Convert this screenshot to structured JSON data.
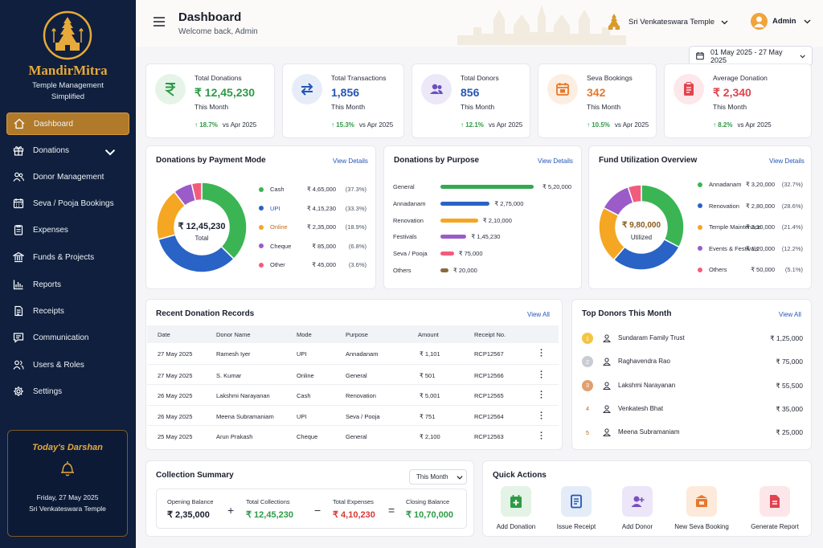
{
  "brand": {
    "name": "MandirMitra",
    "tagline_line1": "Temple Management",
    "tagline_line2": "Simplified"
  },
  "nav": [
    {
      "label": "Dashboard",
      "icon": "home-icon",
      "active": true
    },
    {
      "label": "Donations",
      "icon": "gift-icon",
      "expandable": true
    },
    {
      "label": "Donor Management",
      "icon": "users-icon"
    },
    {
      "label": "Seva / Pooja Bookings",
      "icon": "calendar-icon"
    },
    {
      "label": "Expenses",
      "icon": "clipboard-icon"
    },
    {
      "label": "Funds & Projects",
      "icon": "bank-icon"
    },
    {
      "label": "Reports",
      "icon": "bar-chart-icon"
    },
    {
      "label": "Receipts",
      "icon": "receipt-icon"
    },
    {
      "label": "Communication",
      "icon": "message-icon"
    },
    {
      "label": "Users & Roles",
      "icon": "user-group-icon"
    },
    {
      "label": "Settings",
      "icon": "gear-icon"
    }
  ],
  "darshan": {
    "title": "Today's Darshan",
    "date": "Friday, 27 May 2025",
    "temple": "Sri Venkateswara Temple"
  },
  "header": {
    "title": "Dashboard",
    "welcome": "Welcome back, Admin",
    "temple": "Sri Venkateswara Temple",
    "user": "Admin",
    "date_range": "01 May 2025 - 27 May 2025"
  },
  "stats": [
    {
      "label": "Total Donations",
      "value": "₹ 12,45,230",
      "sub": "This Month",
      "trend": "↑ 18.7%",
      "compare": "vs Apr 2025",
      "color": "#2e9a46",
      "bg": "#e6f4e8",
      "icon": "rupee-icon"
    },
    {
      "label": "Total Transactions",
      "value": "1,856",
      "sub": "This Month",
      "trend": "↑ 15.3%",
      "compare": "vs Apr 2025",
      "color": "#2456b8",
      "bg": "#e7edf8",
      "icon": "transfer-icon"
    },
    {
      "label": "Total Donors",
      "value": "856",
      "sub": "This Month",
      "trend": "↑ 12.1%",
      "compare": "vs Apr 2025",
      "color": "#2456b8",
      "bg": "#ece8f8",
      "icon": "donors-icon"
    },
    {
      "label": "Seva Bookings",
      "value": "342",
      "sub": "This Month",
      "trend": "↑ 10.5%",
      "compare": "vs Apr 2025",
      "color": "#e8782c",
      "bg": "#fdeee2",
      "icon": "seva-calendar-icon"
    },
    {
      "label": "Average Donation",
      "value": "₹ 2,340",
      "sub": "This Month",
      "trend": "↑ 8.2%",
      "compare": "vs Apr 2025",
      "color": "#e0444f",
      "bg": "#fde7ea",
      "icon": "report-icon"
    }
  ],
  "payment_mode": {
    "title": "Donations by Payment Mode",
    "view": "View Details",
    "center_value": "₹ 12,45,230",
    "center_label": "Total"
  },
  "purpose": {
    "title": "Donations by Purpose",
    "view": "View Details"
  },
  "fund": {
    "title": "Fund Utilization Overview",
    "view": "View Details",
    "center_value": "₹ 9,80,000",
    "center_label": "Utilized"
  },
  "chart_data": [
    {
      "type": "pie",
      "title": "Donations by Payment Mode",
      "series": [
        {
          "name": "Cash",
          "value": 465000,
          "amount": "₹ 4,65,000",
          "pct": "(37.3%)",
          "color": "#3bb554"
        },
        {
          "name": "UPI",
          "value": 415230,
          "amount": "₹ 4,15,230",
          "pct": "(33.3%)",
          "color": "#2a63c6"
        },
        {
          "name": "Online",
          "value": 235000,
          "amount": "₹ 2,35,000",
          "pct": "(18.9%)",
          "color": "#f5a623"
        },
        {
          "name": "Cheque",
          "value": 85000,
          "amount": "₹ 85,000",
          "pct": "(6.8%)",
          "color": "#9b5bc9"
        },
        {
          "name": "Other",
          "value": 45000,
          "amount": "₹ 45,000",
          "pct": "(3.6%)",
          "color": "#f25c7c"
        }
      ]
    },
    {
      "type": "bar",
      "title": "Donations by Purpose",
      "categories": [
        "General",
        "Annadanam",
        "Renovation",
        "Festivals",
        "Seva / Pooja",
        "Others"
      ],
      "values": [
        520000,
        275000,
        210000,
        145230,
        75000,
        20000
      ],
      "labels": [
        "₹ 5,20,000",
        "₹ 2,75,000",
        "₹ 2,10,000",
        "₹ 1,45,230",
        "₹ 75,000",
        "₹ 20,000"
      ],
      "colors": [
        "#34a853",
        "#2a63c6",
        "#f5a623",
        "#9b5bc9",
        "#f25c7c",
        "#8b6a3e"
      ]
    },
    {
      "type": "pie",
      "title": "Fund Utilization Overview",
      "series": [
        {
          "name": "Annadanam",
          "value": 320000,
          "amount": "₹ 3,20,000",
          "pct": "(32.7%)",
          "color": "#3bb554"
        },
        {
          "name": "Renovation",
          "value": 280000,
          "amount": "₹ 2,80,000",
          "pct": "(28.6%)",
          "color": "#2a63c6"
        },
        {
          "name": "Temple Maintenace",
          "value": 210000,
          "amount": "₹ 2,10,000",
          "pct": "(21.4%)",
          "color": "#f5a623"
        },
        {
          "name": "Events & Festivals",
          "value": 120000,
          "amount": "₹ 1,20,000",
          "pct": "(12.2%)",
          "color": "#9b5bc9"
        },
        {
          "name": "Others",
          "value": 50000,
          "amount": "₹ 50,000",
          "pct": "(5.1%)",
          "color": "#f25c7c"
        }
      ]
    }
  ],
  "records": {
    "title": "Recent Donation Records",
    "view": "View All",
    "columns": [
      "Date",
      "Donor Name",
      "Mode",
      "Purpose",
      "Amount",
      "Receipt No."
    ],
    "rows": [
      [
        "27 May 2025",
        "Ramesh Iyer",
        "UPI",
        "Annadanam",
        "₹ 1,101",
        "RCP12567"
      ],
      [
        "27 May 2025",
        "S. Kumar",
        "Online",
        "General",
        "₹ 501",
        "RCP12566"
      ],
      [
        "26 May 2025",
        "Lakshmi Narayanan",
        "Cash",
        "Renovation",
        "₹ 5,001",
        "RCP12565"
      ],
      [
        "26 May 2025",
        "Meena Subramaniam",
        "UPI",
        "Seva / Pooja",
        "₹ 751",
        "RCP12564"
      ],
      [
        "25 May 2025",
        "Arun Prakash",
        "Cheque",
        "General",
        "₹ 2,100",
        "RCP12563"
      ]
    ]
  },
  "top_donors": {
    "title": "Top Donors This Month",
    "view": "View All",
    "items": [
      {
        "rank": "1",
        "name": "Sundaram Family Trust",
        "amount": "₹ 1,25,000",
        "badge": "#f4c542"
      },
      {
        "rank": "2",
        "name": "Raghavendra Rao",
        "amount": "₹ 75,000",
        "badge": "#c9ccd3"
      },
      {
        "rank": "3",
        "name": "Lakshmi Narayanan",
        "amount": "₹ 55,500",
        "badge": "#e0a070"
      },
      {
        "rank": "4",
        "name": "Venkatesh Bhat",
        "amount": "₹ 35,000",
        "badge": ""
      },
      {
        "rank": "5",
        "name": "Meena Subramaniam",
        "amount": "₹ 25,000",
        "badge": ""
      }
    ]
  },
  "collection": {
    "title": "Collection Summary",
    "period": "This Month",
    "items": [
      {
        "label": "Opening Balance",
        "value": "₹ 2,35,000",
        "color": "#1a1f2e"
      },
      {
        "label": "Total Collections",
        "value": "₹ 12,45,230",
        "color": "#2e9a46"
      },
      {
        "label": "Total Expenses",
        "value": "₹ 4,10,230",
        "color": "#d93636"
      },
      {
        "label": "Closing Balance",
        "value": "₹ 10,70,000",
        "color": "#2e9a46"
      }
    ],
    "ops": [
      "+",
      "−",
      "="
    ]
  },
  "quick_actions": {
    "title": "Quick Actions",
    "items": [
      {
        "label": "Add Donation",
        "icon": "add-donation-icon",
        "color": "#2e9a46",
        "bg": "#e3f3e6"
      },
      {
        "label": "Issue Receipt",
        "icon": "issue-receipt-icon",
        "color": "#2456b8",
        "bg": "#e4ecf8"
      },
      {
        "label": "Add Donor",
        "icon": "add-donor-icon",
        "color": "#7a4fc0",
        "bg": "#ece6f8"
      },
      {
        "label": "New Seva Booking",
        "icon": "seva-booking-icon",
        "color": "#e8782c",
        "bg": "#fdeadb"
      },
      {
        "label": "Generate Report",
        "icon": "generate-report-icon",
        "color": "#e0444f",
        "bg": "#fde6e9"
      }
    ]
  }
}
